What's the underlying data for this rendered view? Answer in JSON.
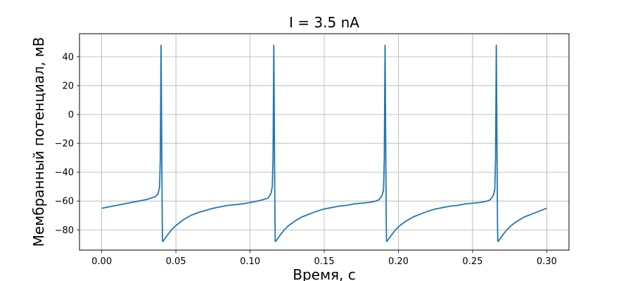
{
  "chart_data": {
    "type": "line",
    "title": "I = 3.5 nA",
    "xlabel": "Время, с",
    "ylabel": "Мембранный потенциал, мВ",
    "xlim": [
      -0.015,
      0.315
    ],
    "ylim": [
      -94,
      56
    ],
    "xticks": [
      0.0,
      0.05,
      0.1,
      0.15,
      0.2,
      0.25,
      0.3
    ],
    "xtick_labels": [
      "0.00",
      "0.05",
      "0.10",
      "0.15",
      "0.20",
      "0.25",
      "0.30"
    ],
    "yticks": [
      -80,
      -60,
      -40,
      -20,
      0,
      20,
      40
    ],
    "ytick_labels": [
      "−80",
      "−60",
      "−40",
      "−20",
      "0",
      "20",
      "40"
    ],
    "grid": true,
    "line_color": "#1f77b4",
    "series": [
      {
        "x": [
          0.0,
          0.005,
          0.01,
          0.015,
          0.02,
          0.025,
          0.03,
          0.033,
          0.036,
          0.038,
          0.039,
          0.0395,
          0.04,
          0.0402,
          0.0405,
          0.0408,
          0.041,
          0.042,
          0.044,
          0.047,
          0.05,
          0.055,
          0.06,
          0.065,
          0.07,
          0.075,
          0.08,
          0.085,
          0.09,
          0.095,
          0.1,
          0.105,
          0.109,
          0.112,
          0.114,
          0.115,
          0.1155,
          0.116,
          0.1162,
          0.1165,
          0.1168,
          0.117,
          0.118,
          0.12,
          0.123,
          0.126,
          0.13,
          0.135,
          0.14,
          0.145,
          0.15,
          0.155,
          0.16,
          0.165,
          0.17,
          0.175,
          0.18,
          0.185,
          0.187,
          0.189,
          0.19,
          0.1905,
          0.191,
          0.1912,
          0.1915,
          0.1918,
          0.192,
          0.193,
          0.195,
          0.198,
          0.201,
          0.205,
          0.21,
          0.215,
          0.22,
          0.225,
          0.23,
          0.235,
          0.24,
          0.245,
          0.25,
          0.255,
          0.26,
          0.262,
          0.264,
          0.265,
          0.2655,
          0.266,
          0.2662,
          0.2665,
          0.2668,
          0.267,
          0.268,
          0.27,
          0.273,
          0.276,
          0.28,
          0.285,
          0.29,
          0.295,
          0.3
        ],
        "y": [
          -65,
          -64,
          -63,
          -62,
          -61,
          -60,
          -59,
          -58,
          -57,
          -55,
          -50,
          -30,
          48,
          20,
          -30,
          -75,
          -88,
          -87,
          -84,
          -80,
          -77,
          -73,
          -70,
          -68,
          -66.5,
          -65,
          -64,
          -63,
          -62.5,
          -62,
          -61,
          -60,
          -59,
          -58,
          -55,
          -50,
          -30,
          48,
          20,
          -30,
          -75,
          -88,
          -87,
          -84,
          -80,
          -77,
          -74,
          -71,
          -69,
          -67,
          -65.5,
          -64.5,
          -63.5,
          -63,
          -62,
          -61.5,
          -61,
          -60,
          -59,
          -56,
          -52,
          -30,
          48,
          20,
          -30,
          -75,
          -88,
          -87,
          -84,
          -80,
          -77,
          -74,
          -71,
          -69,
          -67,
          -65.5,
          -64.5,
          -63.5,
          -63,
          -62,
          -61.5,
          -61,
          -60,
          -59,
          -56,
          -52,
          -30,
          48,
          20,
          -30,
          -75,
          -88,
          -87,
          -84,
          -80,
          -77,
          -74,
          -71,
          -69,
          -67,
          -65
        ]
      }
    ]
  }
}
